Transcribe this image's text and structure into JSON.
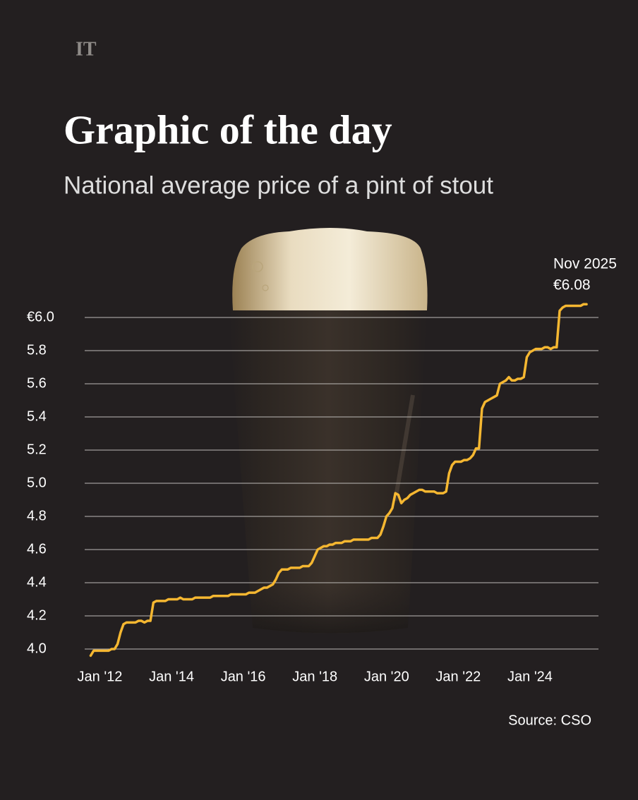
{
  "brand": "IT",
  "chart_data": {
    "type": "line",
    "title": "Graphic of the day",
    "subtitle": "National average price of a pint of stout",
    "source": "Source: CSO",
    "annotations": [
      "Nov 2025",
      "€6.08"
    ],
    "color": "#f5b731",
    "grid": true,
    "x": [
      "2012-01",
      "2012-02",
      "2012-03",
      "2012-04",
      "2012-05",
      "2012-06",
      "2012-07",
      "2012-08",
      "2012-09",
      "2012-10",
      "2012-11",
      "2012-12",
      "2013-01",
      "2013-02",
      "2013-03",
      "2013-04",
      "2013-05",
      "2013-06",
      "2013-07",
      "2013-08",
      "2013-09",
      "2013-10",
      "2013-11",
      "2013-12",
      "2014-01",
      "2014-02",
      "2014-03",
      "2014-04",
      "2014-05",
      "2014-06",
      "2014-07",
      "2014-08",
      "2014-09",
      "2014-10",
      "2014-11",
      "2014-12",
      "2015-01",
      "2015-02",
      "2015-03",
      "2015-04",
      "2015-05",
      "2015-06",
      "2015-07",
      "2015-08",
      "2015-09",
      "2015-10",
      "2015-11",
      "2015-12",
      "2016-01",
      "2016-02",
      "2016-03",
      "2016-04",
      "2016-05",
      "2016-06",
      "2016-07",
      "2016-08",
      "2016-09",
      "2016-10",
      "2016-11",
      "2016-12",
      "2017-01",
      "2017-02",
      "2017-03",
      "2017-04",
      "2017-05",
      "2017-06",
      "2017-07",
      "2017-08",
      "2017-09",
      "2017-10",
      "2017-11",
      "2017-12",
      "2018-01",
      "2018-02",
      "2018-03",
      "2018-04",
      "2018-05",
      "2018-06",
      "2018-07",
      "2018-08",
      "2018-09",
      "2018-10",
      "2018-11",
      "2018-12",
      "2019-01",
      "2019-02",
      "2019-03",
      "2019-04",
      "2019-05",
      "2019-06",
      "2019-07",
      "2019-08",
      "2019-09",
      "2019-10",
      "2019-11",
      "2019-12",
      "2020-01",
      "2020-02",
      "2020-03",
      "2020-04",
      "2020-05",
      "2020-06",
      "2020-07",
      "2020-08",
      "2020-09",
      "2020-10",
      "2020-11",
      "2020-12",
      "2021-01",
      "2021-02",
      "2021-03",
      "2021-04",
      "2021-05",
      "2021-06",
      "2021-07",
      "2021-08",
      "2021-09",
      "2021-10",
      "2021-11",
      "2021-12",
      "2022-01",
      "2022-02",
      "2022-03",
      "2022-04",
      "2022-05",
      "2022-06",
      "2022-07",
      "2022-08",
      "2022-09",
      "2022-10",
      "2022-11",
      "2022-12",
      "2023-01",
      "2023-02",
      "2023-03",
      "2023-04",
      "2023-05",
      "2023-06",
      "2023-07",
      "2023-08",
      "2023-09",
      "2023-10",
      "2023-11",
      "2023-12",
      "2024-01",
      "2024-02",
      "2024-03",
      "2024-04",
      "2024-05",
      "2024-06",
      "2024-07",
      "2024-08",
      "2024-09",
      "2024-10",
      "2024-11",
      "2024-12",
      "2025-01",
      "2025-02",
      "2025-03",
      "2025-04",
      "2025-05",
      "2025-06",
      "2025-07",
      "2025-08",
      "2025-09",
      "2025-10",
      "2025-11"
    ],
    "values": [
      3.96,
      3.99,
      3.99,
      3.99,
      3.99,
      3.99,
      3.99,
      4.0,
      4.0,
      4.03,
      4.1,
      4.15,
      4.16,
      4.16,
      4.16,
      4.16,
      4.17,
      4.17,
      4.16,
      4.17,
      4.17,
      4.28,
      4.29,
      4.29,
      4.29,
      4.29,
      4.3,
      4.3,
      4.3,
      4.3,
      4.31,
      4.3,
      4.3,
      4.3,
      4.3,
      4.31,
      4.31,
      4.31,
      4.31,
      4.31,
      4.31,
      4.32,
      4.32,
      4.32,
      4.32,
      4.32,
      4.32,
      4.33,
      4.33,
      4.33,
      4.33,
      4.33,
      4.33,
      4.34,
      4.34,
      4.34,
      4.35,
      4.36,
      4.37,
      4.37,
      4.38,
      4.39,
      4.42,
      4.46,
      4.48,
      4.48,
      4.48,
      4.49,
      4.49,
      4.49,
      4.49,
      4.5,
      4.5,
      4.5,
      4.52,
      4.56,
      4.6,
      4.61,
      4.62,
      4.62,
      4.63,
      4.63,
      4.64,
      4.64,
      4.64,
      4.65,
      4.65,
      4.65,
      4.66,
      4.66,
      4.66,
      4.66,
      4.66,
      4.66,
      4.67,
      4.67,
      4.67,
      4.69,
      4.74,
      4.8,
      4.82,
      4.85,
      4.94,
      4.93,
      4.88,
      4.9,
      4.91,
      4.93,
      4.94,
      4.95,
      4.96,
      4.96,
      4.95,
      4.95,
      4.95,
      4.95,
      4.94,
      4.94,
      4.94,
      4.95,
      5.06,
      5.11,
      5.13,
      5.13,
      5.13,
      5.14,
      5.14,
      5.15,
      5.17,
      5.21,
      5.21,
      5.45,
      5.49,
      5.5,
      5.51,
      5.52,
      5.53,
      5.6,
      5.61,
      5.62,
      5.64,
      5.62,
      5.62,
      5.63,
      5.63,
      5.64,
      5.76,
      5.79,
      5.8,
      5.81,
      5.81,
      5.81,
      5.82,
      5.82,
      5.81,
      5.82,
      5.82,
      6.04,
      6.06,
      6.07,
      6.07,
      6.07,
      6.07,
      6.07,
      6.07,
      6.08,
      6.08
    ],
    "xlim": [
      "2011-11",
      "2026-03"
    ],
    "xticks": [
      {
        "value": "2012-01",
        "label": "Jan '12"
      },
      {
        "value": "2014-01",
        "label": "Jan '14"
      },
      {
        "value": "2016-01",
        "label": "Jan '16"
      },
      {
        "value": "2018-01",
        "label": "Jan '18"
      },
      {
        "value": "2020-01",
        "label": "Jan '20"
      },
      {
        "value": "2022-01",
        "label": "Jan '22"
      },
      {
        "value": "2024-01",
        "label": "Jan '24"
      }
    ],
    "ylim": [
      3.9,
      6.2
    ],
    "yticks": [
      {
        "value": 4.0,
        "label": "4.0"
      },
      {
        "value": 4.2,
        "label": "4.2"
      },
      {
        "value": 4.4,
        "label": "4.4"
      },
      {
        "value": 4.6,
        "label": "4.6"
      },
      {
        "value": 4.8,
        "label": "4.8"
      },
      {
        "value": 5.0,
        "label": "5.0"
      },
      {
        "value": 5.2,
        "label": "5.2"
      },
      {
        "value": 5.4,
        "label": "5.4"
      },
      {
        "value": 5.6,
        "label": "5.6"
      },
      {
        "value": 5.8,
        "label": "5.8"
      },
      {
        "value": 6.0,
        "label": "€6.0"
      }
    ]
  }
}
